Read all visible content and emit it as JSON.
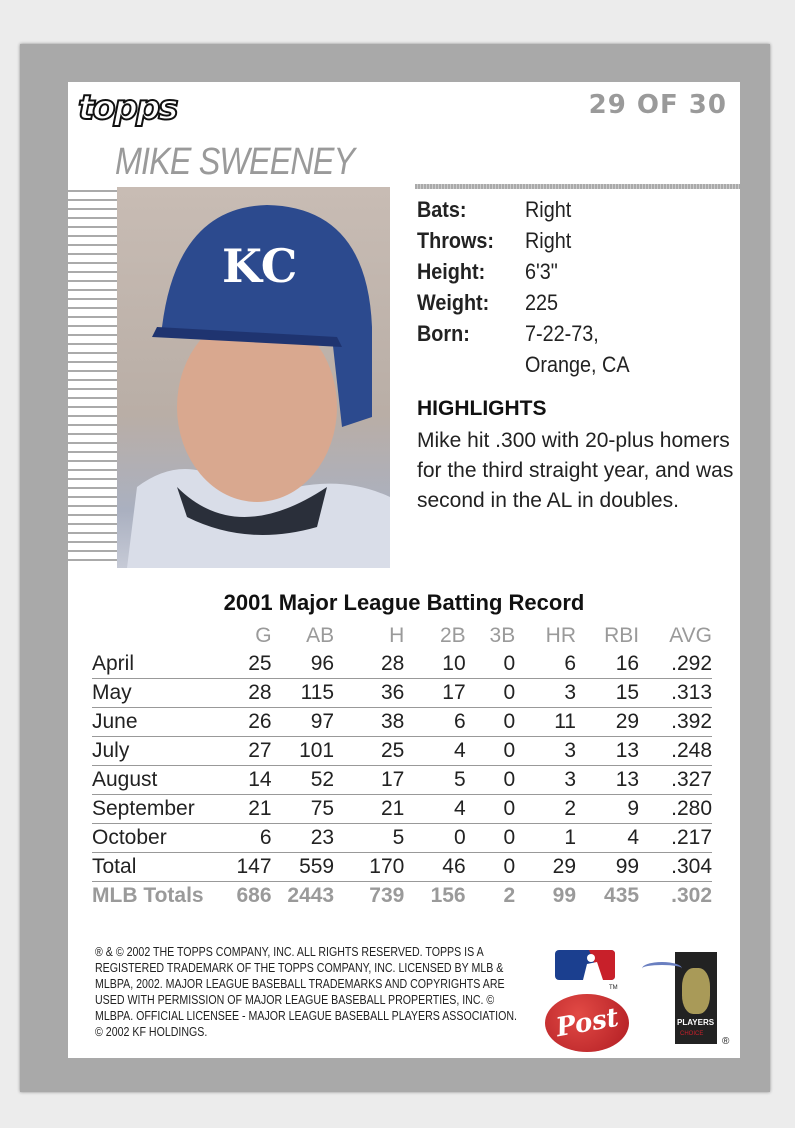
{
  "brand": "topps",
  "card_number": "29 OF 30",
  "player_name": "MIKE SWEENEY",
  "bio": [
    {
      "label": "Bats:",
      "value": "Right"
    },
    {
      "label": "Throws:",
      "value": "Right"
    },
    {
      "label": "Height:",
      "value": "6'3\""
    },
    {
      "label": "Weight:",
      "value": "225"
    },
    {
      "label": "Born:",
      "value": "7-22-73,"
    },
    {
      "label": "",
      "value": "Orange, CA"
    }
  ],
  "highlights": {
    "title": "HIGHLIGHTS",
    "text": "Mike hit .300 with 20-plus homers for the third straight year, and was second in the AL in doubles."
  },
  "photo": {
    "helmet_logo": "KC"
  },
  "table": {
    "title": "2001 Major League Batting Record",
    "headers": [
      "",
      "G",
      "AB",
      "H",
      "2B",
      "3B",
      "HR",
      "RBI",
      "AVG"
    ],
    "rows": [
      [
        "April",
        "25",
        "96",
        "28",
        "10",
        "0",
        "6",
        "16",
        ".292"
      ],
      [
        "May",
        "28",
        "115",
        "36",
        "17",
        "0",
        "3",
        "15",
        ".313"
      ],
      [
        "June",
        "26",
        "97",
        "38",
        "6",
        "0",
        "11",
        "29",
        ".392"
      ],
      [
        "July",
        "27",
        "101",
        "25",
        "4",
        "0",
        "3",
        "13",
        ".248"
      ],
      [
        "August",
        "14",
        "52",
        "17",
        "5",
        "0",
        "3",
        "13",
        ".327"
      ],
      [
        "September",
        "21",
        "75",
        "21",
        "4",
        "0",
        "2",
        "9",
        ".280"
      ],
      [
        "October",
        "6",
        "23",
        "5",
        "0",
        "0",
        "1",
        "4",
        ".217"
      ],
      [
        "Total",
        "147",
        "559",
        "170",
        "46",
        "0",
        "29",
        "99",
        ".304"
      ],
      [
        "MLB Totals",
        "686",
        "2443",
        "739",
        "156",
        "2",
        "99",
        "435",
        ".302"
      ]
    ]
  },
  "legal": "® & © 2002 THE TOPPS COMPANY, INC. ALL RIGHTS RESERVED. TOPPS IS A REGISTERED TRADEMARK OF THE TOPPS COMPANY, INC. LICENSED BY MLB & MLBPA, 2002. MAJOR LEAGUE BASEBALL TRADEMARKS AND COPYRIGHTS ARE USED WITH PERMISSION OF MAJOR LEAGUE BASEBALL PROPERTIES, INC. © MLBPA. OFFICIAL LICENSEE - MAJOR LEAGUE BASEBALL PLAYERS ASSOCIATION.  © 2002 KF HOLDINGS.",
  "logos": {
    "post": "Post",
    "mlb_tm": "TM",
    "players": "PLAYERS",
    "players_sub": "CHOICE",
    "registered": "®"
  },
  "colors": {
    "border": "#a9a9a9",
    "muted_text": "#9a9a9a",
    "post_red": "#c8202a",
    "mlb_blue": "#1b3f8f",
    "mlb_red": "#c8202a"
  }
}
